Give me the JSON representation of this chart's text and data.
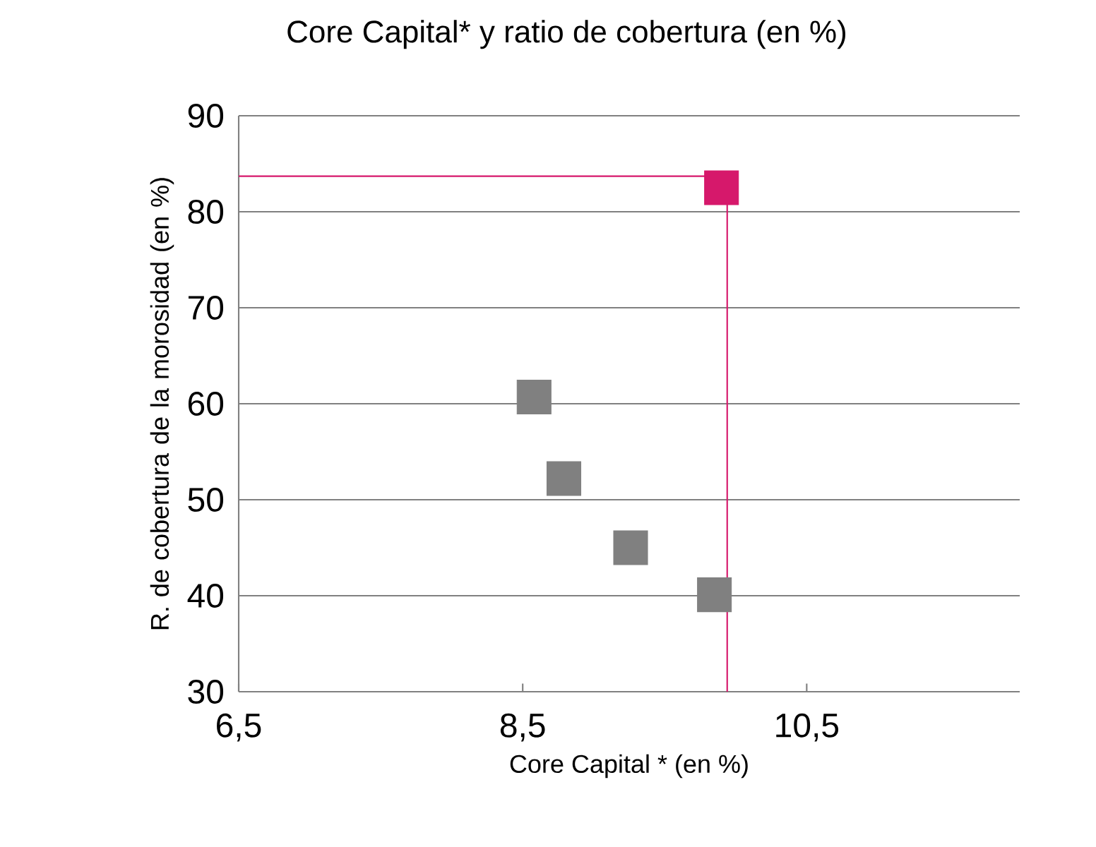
{
  "chart_data": {
    "type": "scatter",
    "title": "Core Capital* y ratio de cobertura (en %)",
    "xlabel": "Core Capital * (en %)",
    "ylabel": "R. de cobertura de la morosidad (en %)",
    "xlim": [
      6.5,
      12
    ],
    "ylim": [
      30,
      90
    ],
    "xticks": [
      {
        "value": 6.5,
        "label": "6,5"
      },
      {
        "value": 8.5,
        "label": "8,5"
      },
      {
        "value": 10.5,
        "label": "10,5"
      }
    ],
    "yticks": [
      30,
      40,
      50,
      60,
      70,
      80,
      90
    ],
    "grid": "y",
    "marker": "square",
    "series": [
      {
        "color": "#808080",
        "x": [
          8.58,
          8.79,
          9.26,
          9.85
        ],
        "values": [
          60.7,
          52.2,
          45.0,
          40.1
        ]
      },
      {
        "color": "#d6186b",
        "x": [
          9.9
        ],
        "values": [
          82.5
        ]
      }
    ],
    "ref_lines": [
      {
        "axis": "y",
        "value": 83.7,
        "color": "#d6186b"
      },
      {
        "axis": "x",
        "value": 9.94,
        "color": "#d6186b"
      }
    ]
  }
}
